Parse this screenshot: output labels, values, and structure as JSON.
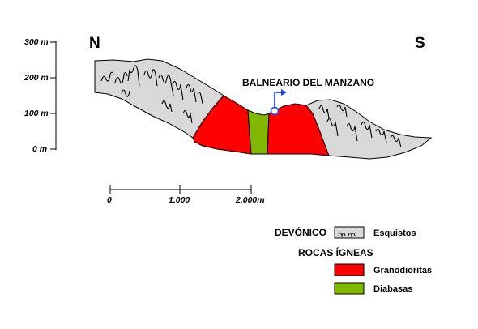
{
  "orientation": {
    "north": "N",
    "south": "S"
  },
  "elevation_axis": {
    "ticks": [
      "300 m",
      "200 m",
      "100 m",
      "0 m"
    ]
  },
  "site": {
    "label": "BALNEARIO DEL MANZANO"
  },
  "scale_bar": {
    "ticks": [
      "0",
      "1.000",
      "2.000m"
    ]
  },
  "legend": {
    "group1": {
      "heading": "DEVÓNICO",
      "items": [
        {
          "label": "Esquistos",
          "color": "#d9d9d9",
          "pattern": "schist-wavy"
        }
      ]
    },
    "group2": {
      "heading": "ROCAS ÍGNEAS",
      "items": [
        {
          "label": "Granodioritas",
          "color": "#ff0000"
        },
        {
          "label": "Diabasas",
          "color": "#80b800"
        }
      ]
    }
  },
  "colors": {
    "schist": "#d9d9d9",
    "granodiorite": "#ff0000",
    "diabase": "#80b800",
    "marker": "#1a3fff"
  }
}
